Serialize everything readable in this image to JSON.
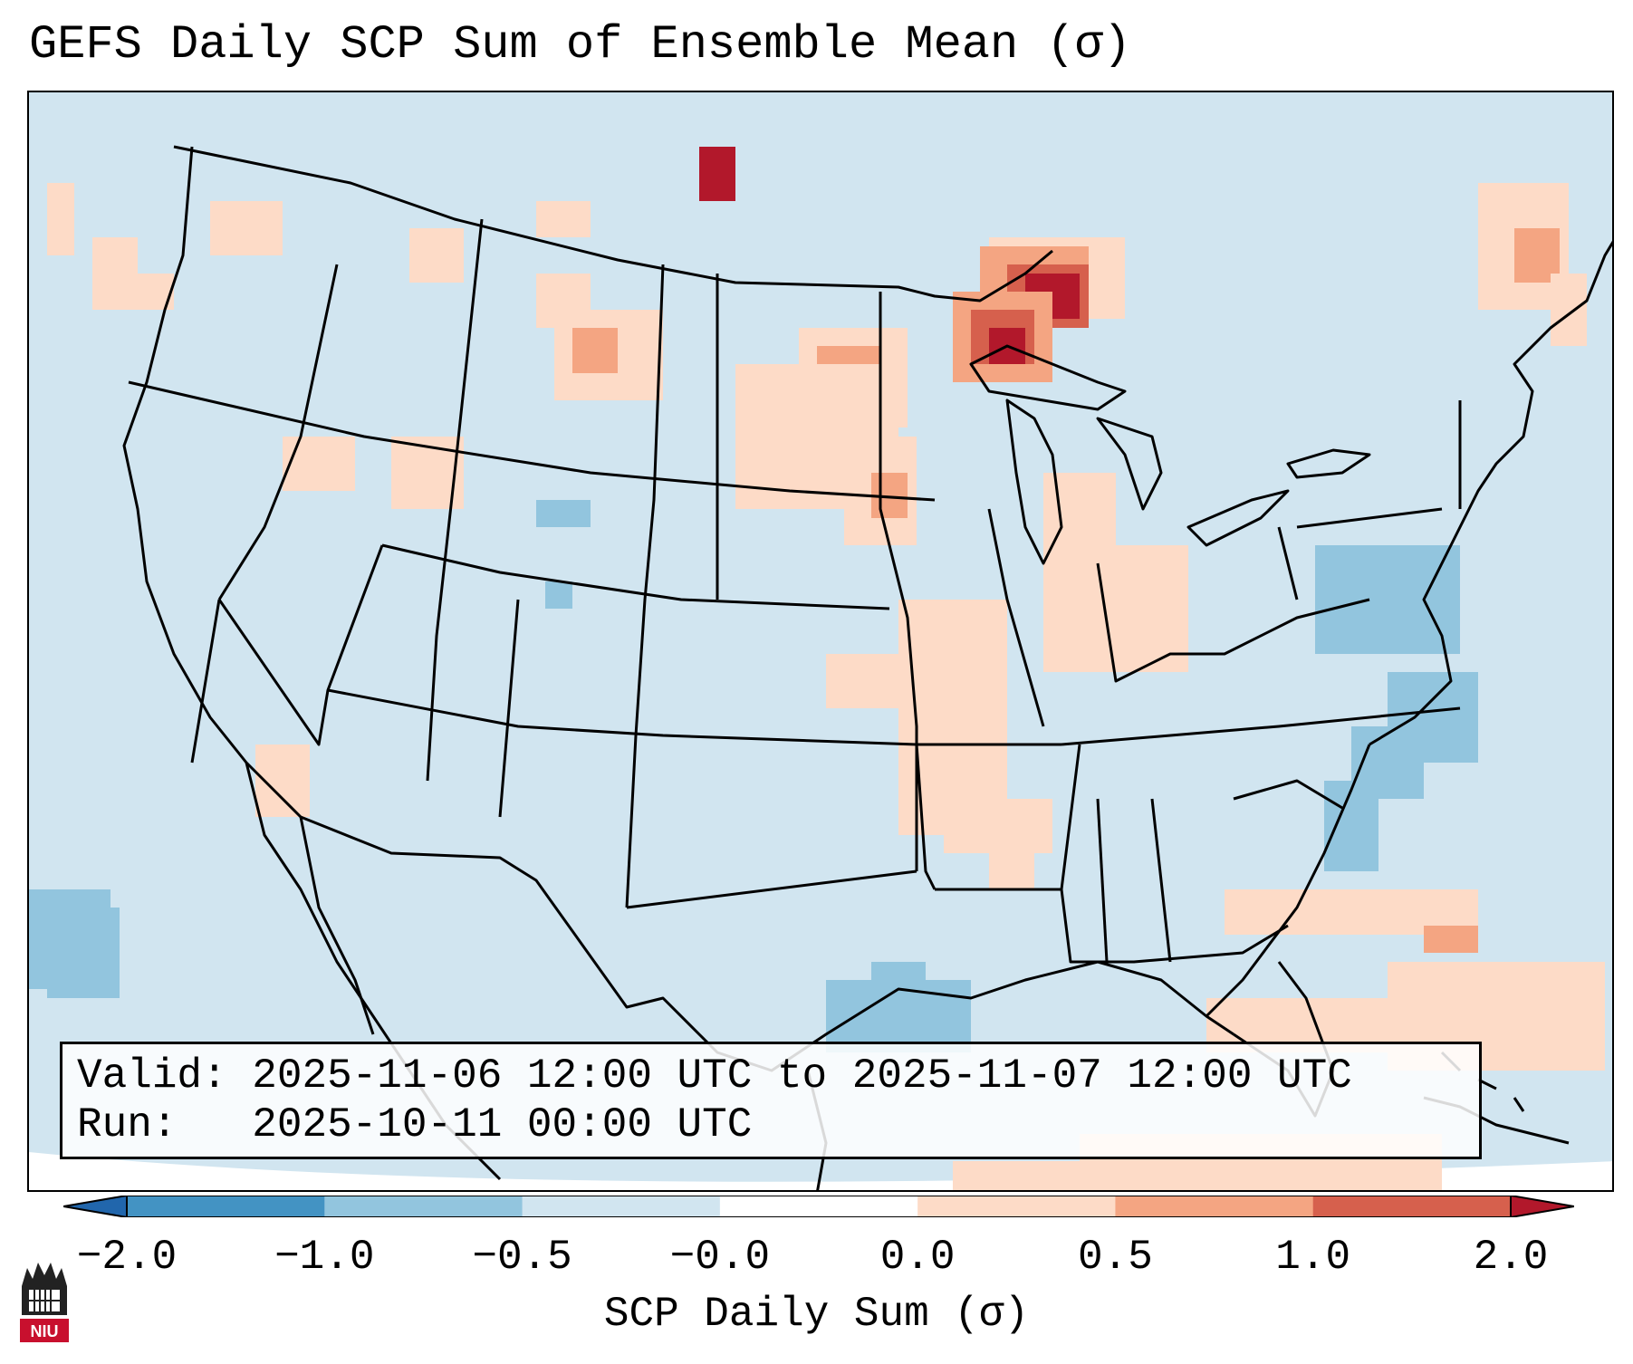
{
  "title": "GEFS Daily SCP Sum of Ensemble Mean (σ)",
  "info": {
    "valid_label": "Valid:",
    "valid_value": "2025-11-06 12:00 UTC to 2025-11-07 12:00 UTC",
    "run_label": "Run:",
    "run_value": "2025-10-11 00:00 UTC"
  },
  "colorbar": {
    "label": "SCP Daily Sum (σ)",
    "ticks": [
      "−2.0",
      "−1.0",
      "−0.5",
      "−0.0",
      "0.0",
      "0.5",
      "1.0",
      "2.0"
    ],
    "colors": {
      "below": "#2166ac",
      "bins": [
        "#4393c3",
        "#92c5de",
        "#d1e5f0",
        "#ffffff",
        "#fddbc7",
        "#f4a582",
        "#d6604d"
      ],
      "above": "#b2182b"
    }
  },
  "map": {
    "background_color": "#d1e5f0",
    "regions": "CONUS and surrounding areas",
    "anomaly_areas": [
      {
        "area": "Upper Midwest / Northern Wisconsin and Michigan UP",
        "level": "1.0 to 2.0"
      },
      {
        "area": "Southern Minnesota / eastern South Dakota",
        "level": "0.5 to 2.0"
      },
      {
        "area": "Central Plains to Ohio Valley",
        "level": "0.0 to 0.5"
      },
      {
        "area": "Western Atlantic off Carolinas",
        "level": "-1.0 to -0.5"
      },
      {
        "area": "Caribbean / Bahamas",
        "level": "0.0 to 1.0"
      }
    ]
  },
  "logo": {
    "text": "NIU",
    "color": "#c8102e"
  }
}
